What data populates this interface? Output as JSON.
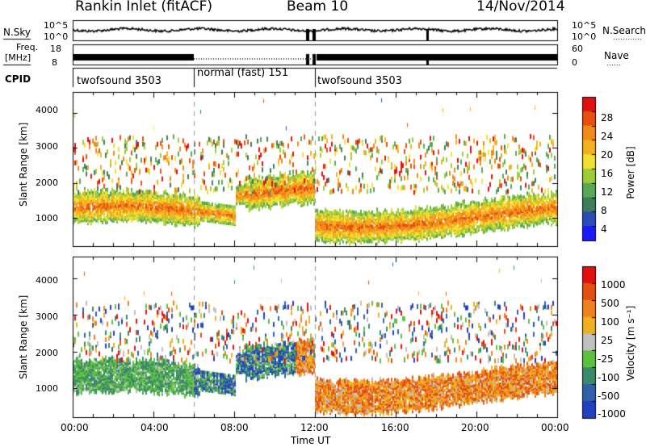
{
  "header": {
    "station": "Rankin Inlet (fitACF)",
    "beam": "Beam 10",
    "date": "14/Nov/2014"
  },
  "noise_panel": {
    "left_label": "N.Sky",
    "right_label": "N.Search",
    "left_ticks": [
      "10^5",
      "10^0"
    ],
    "right_ticks": [
      "10^5",
      "10^0"
    ]
  },
  "freq_panel": {
    "left_label_1": "Freq.",
    "left_label_2": "[MHz]",
    "right_label": "Nave",
    "left_ticks": [
      "18",
      "8"
    ],
    "right_ticks": [
      "60",
      "0"
    ]
  },
  "cpid": {
    "label": "CPID",
    "segments": [
      {
        "name": "twofsound 3503",
        "start_hour": 0,
        "end_hour": 6
      },
      {
        "name": "normal (fast) 151",
        "start_hour": 6,
        "end_hour": 12
      },
      {
        "name": "twofsound 3503",
        "start_hour": 12,
        "end_hour": 24
      }
    ]
  },
  "colors": {
    "power_scale": [
      "#1a1aff",
      "#2a4db8",
      "#3d7d5a",
      "#57a857",
      "#9ccc3a",
      "#f0e030",
      "#f5b020",
      "#f08a1a",
      "#e85010",
      "#e01010"
    ],
    "velocity_scale": [
      "#2040c0",
      "#3060a8",
      "#3a8a6a",
      "#5cc040",
      "#c0c0c0",
      "#f0b020",
      "#f08020",
      "#e05010",
      "#e01010"
    ],
    "axis": "#000000"
  },
  "chart_data": [
    {
      "type": "heatmap",
      "name": "power",
      "ylabel": "Slant Range [km]",
      "yticks": [
        "1000",
        "2000",
        "3000",
        "4000"
      ],
      "ylim": [
        200,
        4600
      ],
      "xlim_hours": [
        0,
        24
      ],
      "colorbar_label": "Power [dB]",
      "colorbar_ticks": [
        "4",
        "8",
        "12",
        "16",
        "20",
        "24",
        "28"
      ],
      "colorbar_range": [
        0,
        30
      ]
    },
    {
      "type": "heatmap",
      "name": "velocity",
      "ylabel": "Slant Range [km]",
      "yticks": [
        "1000",
        "2000",
        "3000",
        "4000"
      ],
      "ylim": [
        200,
        4600
      ],
      "xlim_hours": [
        0,
        24
      ],
      "xlabel": "Time UT",
      "xticks": [
        "00:00",
        "04:00",
        "08:00",
        "12:00",
        "16:00",
        "20:00",
        "00:00"
      ],
      "colorbar_label": "Velocity [m s⁻¹]",
      "colorbar_ticks": [
        "1000",
        "500",
        "100",
        "25",
        "-25",
        "-100",
        "-500",
        "-1000"
      ]
    }
  ]
}
